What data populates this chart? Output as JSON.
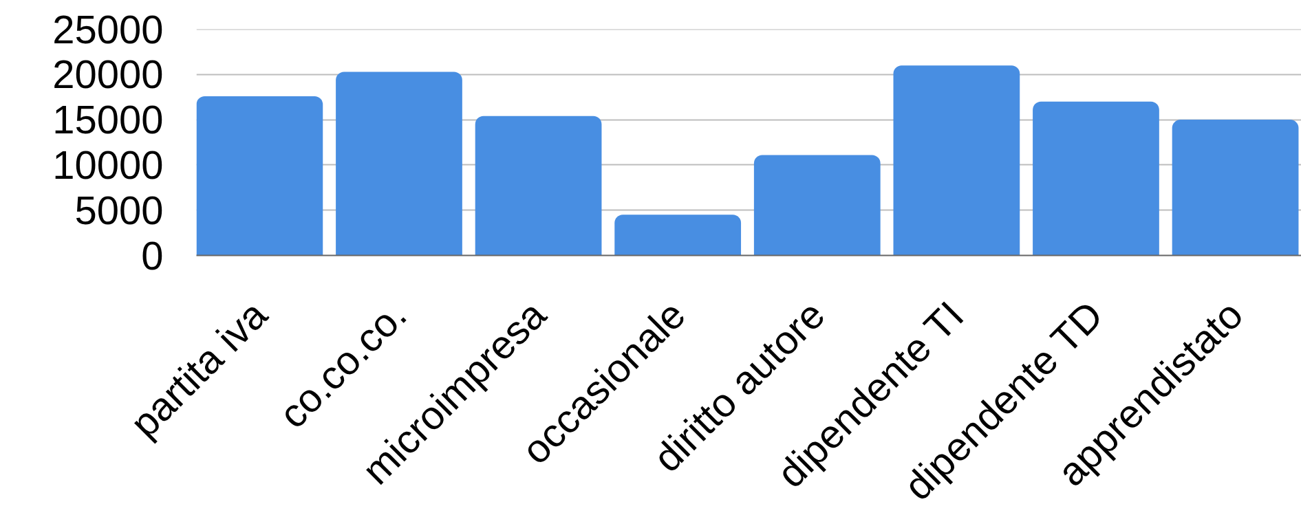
{
  "chart_data": {
    "type": "bar",
    "categories": [
      "partita iva",
      "co.co.co.",
      "microimpresa",
      "occasionale",
      "diritto autore",
      "dipendente TI",
      "dipendente TD",
      "apprendistato"
    ],
    "values": [
      17600,
      20300,
      15400,
      4500,
      11100,
      21000,
      17000,
      15000
    ],
    "color": "#488ee2",
    "ylim": [
      0,
      25000
    ],
    "yticks": [
      0,
      5000,
      10000,
      15000,
      20000,
      25000
    ],
    "grid": "y"
  }
}
